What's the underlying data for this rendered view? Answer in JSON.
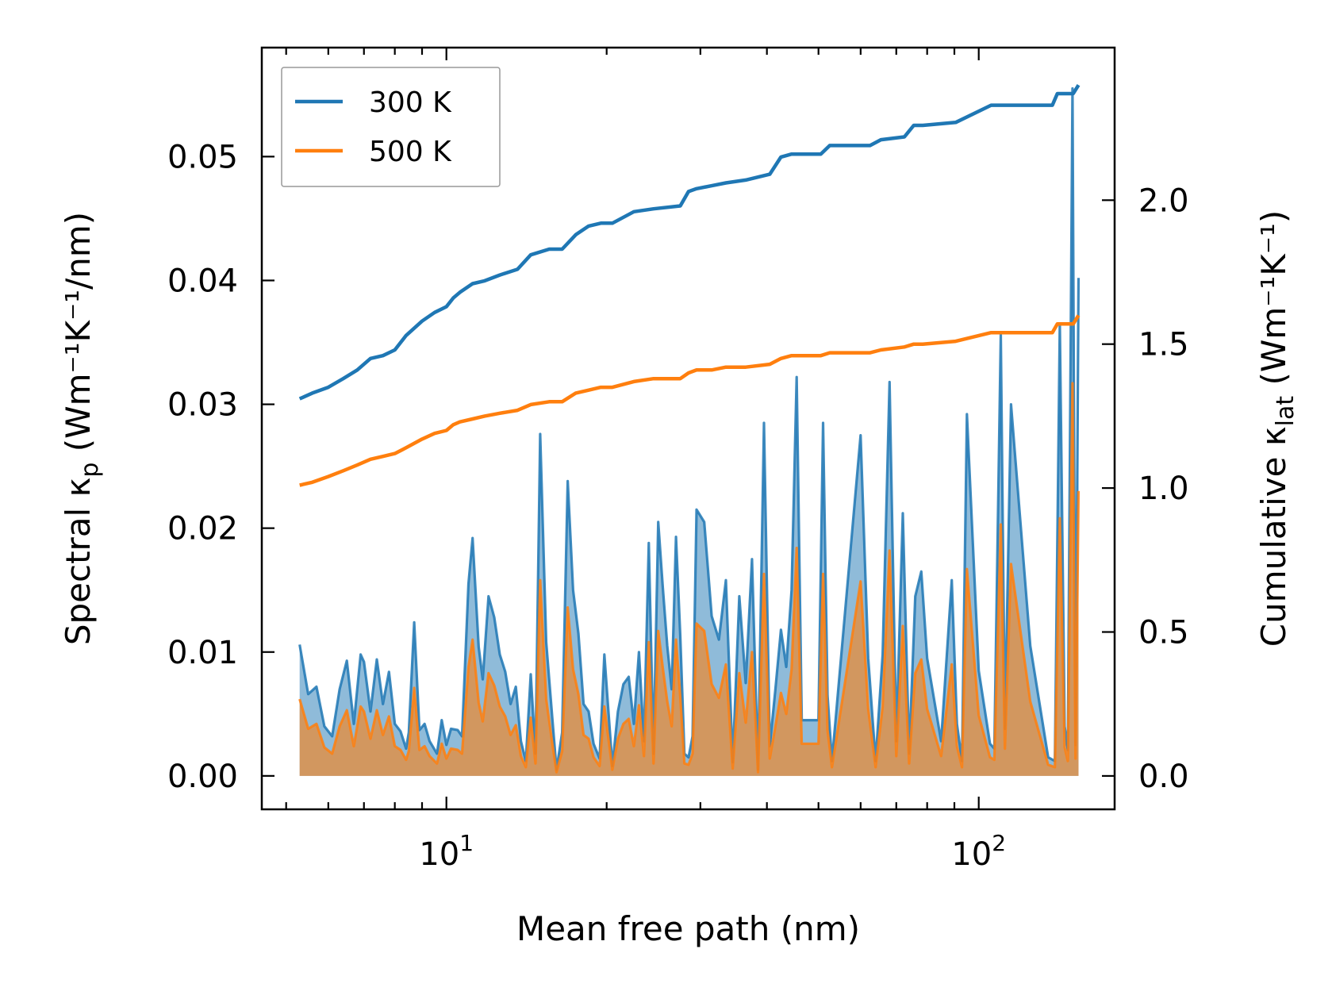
{
  "chart_data": {
    "type": "line",
    "title": "",
    "xlabel": "Mean free path (nm)",
    "ylabel_left": {
      "main": "Spectral κ",
      "sub": "p",
      "unit": "(Wm⁻¹K⁻¹/nm)"
    },
    "ylabel_right": {
      "main": "Cumulative κ",
      "sub": "lat",
      "unit": "(Wm⁻¹K⁻¹)"
    },
    "x_scale": "log",
    "xlim": [
      4.5,
      180
    ],
    "ylim_left": [
      -0.0027,
      0.0588
    ],
    "ylim_right": [
      -0.116,
      2.53
    ],
    "x_tick_labels": [
      {
        "value": 10,
        "base": "10",
        "exp": "1"
      },
      {
        "value": 100,
        "base": "10",
        "exp": "2"
      }
    ],
    "y_left_ticks": [
      0.0,
      0.01,
      0.02,
      0.03,
      0.04,
      0.05
    ],
    "y_left_tick_labels": [
      "0.00",
      "0.01",
      "0.02",
      "0.03",
      "0.04",
      "0.05"
    ],
    "y_right_ticks": [
      0.0,
      0.5,
      1.0,
      1.5,
      2.0
    ],
    "y_right_tick_labels": [
      "0.0",
      "0.5",
      "1.0",
      "1.5",
      "2.0"
    ],
    "legend": {
      "position": "upper-left",
      "entries": [
        {
          "label": "300 K",
          "color": "#1f77b4"
        },
        {
          "label": "500 K",
          "color": "#ff7f0e"
        }
      ]
    },
    "spectral": {
      "x": [
        5.3,
        5.5,
        5.7,
        5.9,
        6.1,
        6.3,
        6.5,
        6.7,
        6.9,
        7.0,
        7.2,
        7.4,
        7.6,
        7.8,
        8.0,
        8.2,
        8.4,
        8.5,
        8.7,
        8.9,
        9.1,
        9.3,
        9.6,
        9.8,
        10.0,
        10.2,
        10.5,
        10.7,
        11.0,
        11.2,
        11.5,
        11.7,
        12.0,
        12.3,
        12.6,
        12.9,
        13.2,
        13.5,
        13.8,
        14.1,
        14.4,
        14.7,
        15.0,
        15.4,
        15.8,
        16.1,
        16.5,
        16.9,
        17.3,
        17.7,
        18.1,
        18.5,
        18.9,
        19.4,
        19.8,
        20.5,
        21.0,
        21.5,
        22.0,
        22.5,
        23.0,
        23.5,
        24.0,
        24.5,
        25.0,
        25.5,
        26.0,
        26.5,
        27.0,
        27.5,
        28.0,
        28.5,
        29.0,
        29.5,
        30.5,
        31.5,
        32.5,
        33.5,
        34.5,
        35.5,
        36.5,
        37.5,
        38.5,
        39.5,
        40.5,
        41.5,
        42.5,
        43.5,
        44.5,
        45.5,
        46.5,
        50.0,
        51.0,
        52.0,
        53.0,
        60.0,
        62.0,
        64.0,
        66.0,
        68.0,
        70.0,
        72.0,
        74.0,
        76.0,
        78.0,
        80.0,
        85.0,
        89.0,
        91.0,
        93.0,
        95.0,
        100.0,
        105.0,
        107.0,
        110.0,
        112.0,
        115.0,
        125.0,
        135.0,
        139.0,
        142.0,
        145.0,
        147.0,
        150.0,
        152.0,
        154.0
      ],
      "series": [
        {
          "name": "300 K",
          "color": "#1f77b4",
          "values": [
            0.0106,
            0.0066,
            0.0072,
            0.004,
            0.0032,
            0.007,
            0.0093,
            0.0042,
            0.0098,
            0.0092,
            0.0052,
            0.0094,
            0.0058,
            0.0084,
            0.0042,
            0.0036,
            0.0022,
            0.0035,
            0.0124,
            0.0037,
            0.0042,
            0.0028,
            0.0018,
            0.0045,
            0.0025,
            0.0038,
            0.0037,
            0.0032,
            0.0155,
            0.0192,
            0.0104,
            0.0078,
            0.0145,
            0.0128,
            0.0098,
            0.0084,
            0.0058,
            0.0072,
            0.0028,
            0.0012,
            0.0082,
            0.0018,
            0.0276,
            0.0108,
            0.0048,
            0.0005,
            0.0035,
            0.0238,
            0.015,
            0.0115,
            0.0058,
            0.0052,
            0.0026,
            0.0014,
            0.0098,
            0.0008,
            0.0052,
            0.0074,
            0.008,
            0.0042,
            0.01,
            0.0028,
            0.0188,
            0.0018,
            0.0205,
            0.0152,
            0.0105,
            0.007,
            0.0193,
            0.0113,
            0.0018,
            0.0015,
            0.0032,
            0.0215,
            0.0205,
            0.0129,
            0.011,
            0.0158,
            0.0011,
            0.0145,
            0.0075,
            0.0175,
            0.0005,
            0.0285,
            0.0024,
            0.007,
            0.0118,
            0.0088,
            0.015,
            0.0322,
            0.0045,
            0.0045,
            0.0285,
            0.0065,
            0.0012,
            0.0275,
            0.0095,
            0.0012,
            0.0098,
            0.0318,
            0.0028,
            0.0212,
            0.0018,
            0.0145,
            0.0165,
            0.0095,
            0.0028,
            0.0158,
            0.0042,
            0.0012,
            0.0292,
            0.0085,
            0.0026,
            0.0022,
            0.0356,
            0.0038,
            0.03,
            0.0105,
            0.0015,
            0.0012,
            0.0365,
            0.004,
            0.0021,
            0.0555,
            0.0025,
            0.0402
          ]
        },
        {
          "name": "500 K",
          "color": "#ff7f0e",
          "values": [
            0.0062,
            0.0038,
            0.0042,
            0.0023,
            0.0018,
            0.004,
            0.0053,
            0.0024,
            0.0056,
            0.0052,
            0.003,
            0.0053,
            0.0033,
            0.0048,
            0.0024,
            0.0021,
            0.0013,
            0.002,
            0.0071,
            0.0021,
            0.0024,
            0.0016,
            0.001,
            0.0026,
            0.0014,
            0.0022,
            0.0021,
            0.0018,
            0.0088,
            0.011,
            0.0059,
            0.0044,
            0.0083,
            0.0073,
            0.0056,
            0.0048,
            0.0033,
            0.0041,
            0.0016,
            0.0007,
            0.0047,
            0.001,
            0.0158,
            0.0062,
            0.0027,
            0.0003,
            0.002,
            0.0136,
            0.0086,
            0.0066,
            0.0033,
            0.003,
            0.0015,
            0.0008,
            0.0056,
            0.0005,
            0.003,
            0.0042,
            0.0046,
            0.0024,
            0.0057,
            0.0016,
            0.0108,
            0.001,
            0.0117,
            0.0087,
            0.006,
            0.004,
            0.011,
            0.0064,
            0.001,
            0.0009,
            0.0018,
            0.0123,
            0.0117,
            0.0074,
            0.0063,
            0.009,
            0.0006,
            0.0083,
            0.0043,
            0.01,
            0.0003,
            0.0163,
            0.0014,
            0.004,
            0.0067,
            0.005,
            0.0086,
            0.0184,
            0.0026,
            0.0026,
            0.0163,
            0.0037,
            0.0007,
            0.0157,
            0.0054,
            0.0007,
            0.0056,
            0.0182,
            0.0016,
            0.0121,
            0.001,
            0.0083,
            0.0094,
            0.0054,
            0.0016,
            0.009,
            0.0024,
            0.0007,
            0.0167,
            0.0049,
            0.0015,
            0.0013,
            0.0203,
            0.0022,
            0.0171,
            0.006,
            0.0009,
            0.0007,
            0.0208,
            0.0023,
            0.0012,
            0.0317,
            0.0014,
            0.023
          ]
        }
      ]
    },
    "cumulative": {
      "x": [
        5.3,
        5.6,
        6.0,
        6.4,
        6.8,
        7.2,
        7.6,
        8.0,
        8.4,
        9.0,
        9.5,
        10.0,
        10.3,
        10.6,
        11.2,
        11.8,
        12.6,
        13.6,
        14.4,
        15.6,
        16.5,
        17.5,
        18.5,
        19.5,
        20.5,
        22.5,
        24.5,
        27.5,
        28.5,
        29.5,
        31.5,
        33.5,
        36.5,
        40.5,
        42.5,
        44.5,
        50.5,
        52.5,
        62.5,
        65.5,
        72.5,
        75.5,
        78.5,
        90.5,
        105.5,
        107.5,
        137.5,
        140.5,
        150.5,
        154.0
      ],
      "series": [
        {
          "name": "300 K",
          "color": "#1f77b4",
          "values": [
            1.31,
            1.33,
            1.35,
            1.38,
            1.41,
            1.45,
            1.46,
            1.48,
            1.53,
            1.58,
            1.61,
            1.63,
            1.66,
            1.68,
            1.71,
            1.72,
            1.74,
            1.76,
            1.81,
            1.83,
            1.83,
            1.88,
            1.91,
            1.92,
            1.92,
            1.96,
            1.97,
            1.98,
            2.03,
            2.04,
            2.05,
            2.06,
            2.07,
            2.09,
            2.15,
            2.16,
            2.16,
            2.19,
            2.19,
            2.21,
            2.22,
            2.26,
            2.26,
            2.27,
            2.33,
            2.33,
            2.33,
            2.37,
            2.37,
            2.4
          ]
        },
        {
          "name": "500 K",
          "color": "#ff7f0e",
          "values": [
            1.01,
            1.02,
            1.04,
            1.06,
            1.08,
            1.1,
            1.11,
            1.12,
            1.14,
            1.17,
            1.19,
            1.2,
            1.22,
            1.23,
            1.24,
            1.25,
            1.26,
            1.27,
            1.29,
            1.3,
            1.3,
            1.33,
            1.34,
            1.35,
            1.35,
            1.37,
            1.38,
            1.38,
            1.4,
            1.41,
            1.41,
            1.42,
            1.42,
            1.43,
            1.45,
            1.46,
            1.46,
            1.47,
            1.47,
            1.48,
            1.49,
            1.5,
            1.5,
            1.51,
            1.54,
            1.54,
            1.54,
            1.57,
            1.57,
            1.6
          ]
        }
      ]
    }
  }
}
